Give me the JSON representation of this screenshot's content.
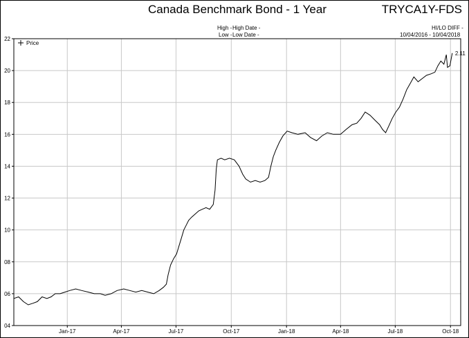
{
  "header": {
    "title": "Canada Benchmark Bond - 1 Year",
    "ticker": "TRYCA1Y-FDS",
    "high_label": "High -",
    "high_date_label": "High Date -",
    "low_label": "Low -",
    "low_date_label": "Low Date -",
    "hilo_label": "HI/LO DIFF -",
    "date_range": "10/04/2016 - 10/04/2018"
  },
  "chart_data": {
    "type": "line",
    "title": "Canada Benchmark Bond - 1 Year",
    "legend": {
      "entries": [
        "Price"
      ],
      "placement": "top-left"
    },
    "last_value_label": "2.11",
    "xlabel": "",
    "ylabel": "",
    "x_tick_labels": [
      "Jan-17",
      "Apr-17",
      "Jul-17",
      "Oct-17",
      "Jan-18",
      "Apr-18",
      "Jul-18",
      "Oct-18"
    ],
    "x_tick_dates": [
      "2017-01-01",
      "2017-04-01",
      "2017-07-01",
      "2017-10-01",
      "2018-01-01",
      "2018-04-01",
      "2018-07-01",
      "2018-10-01"
    ],
    "xlim": [
      "2016-10-04",
      "2018-10-18"
    ],
    "y_tick_labels": [
      "04",
      "06",
      "08",
      "10",
      "12",
      "14",
      "16",
      "18",
      "20",
      "22"
    ],
    "y_tick_values": [
      0.4,
      0.6,
      0.8,
      1.0,
      1.2,
      1.4,
      1.6,
      1.8,
      2.0,
      2.2
    ],
    "ylim": [
      0.4,
      2.2
    ],
    "grid": true,
    "series": [
      {
        "name": "Price",
        "points": [
          [
            "2016-10-04",
            0.57
          ],
          [
            "2016-10-12",
            0.58
          ],
          [
            "2016-10-20",
            0.55
          ],
          [
            "2016-10-28",
            0.53
          ],
          [
            "2016-11-05",
            0.54
          ],
          [
            "2016-11-12",
            0.55
          ],
          [
            "2016-11-20",
            0.58
          ],
          [
            "2016-11-28",
            0.57
          ],
          [
            "2016-12-05",
            0.58
          ],
          [
            "2016-12-12",
            0.6
          ],
          [
            "2016-12-20",
            0.6
          ],
          [
            "2016-12-28",
            0.61
          ],
          [
            "2017-01-05",
            0.62
          ],
          [
            "2017-01-15",
            0.63
          ],
          [
            "2017-01-25",
            0.62
          ],
          [
            "2017-02-05",
            0.61
          ],
          [
            "2017-02-15",
            0.6
          ],
          [
            "2017-02-25",
            0.6
          ],
          [
            "2017-03-05",
            0.59
          ],
          [
            "2017-03-15",
            0.6
          ],
          [
            "2017-03-25",
            0.62
          ],
          [
            "2017-04-05",
            0.63
          ],
          [
            "2017-04-15",
            0.62
          ],
          [
            "2017-04-25",
            0.61
          ],
          [
            "2017-05-05",
            0.62
          ],
          [
            "2017-05-15",
            0.61
          ],
          [
            "2017-05-25",
            0.6
          ],
          [
            "2017-06-03",
            0.62
          ],
          [
            "2017-06-10",
            0.64
          ],
          [
            "2017-06-15",
            0.66
          ],
          [
            "2017-06-18",
            0.72
          ],
          [
            "2017-06-22",
            0.78
          ],
          [
            "2017-06-27",
            0.82
          ],
          [
            "2017-07-02",
            0.85
          ],
          [
            "2017-07-06",
            0.9
          ],
          [
            "2017-07-10",
            0.95
          ],
          [
            "2017-07-14",
            1.0
          ],
          [
            "2017-07-18",
            1.03
          ],
          [
            "2017-07-22",
            1.06
          ],
          [
            "2017-07-27",
            1.08
          ],
          [
            "2017-08-02",
            1.1
          ],
          [
            "2017-08-08",
            1.12
          ],
          [
            "2017-08-14",
            1.13
          ],
          [
            "2017-08-20",
            1.14
          ],
          [
            "2017-08-26",
            1.13
          ],
          [
            "2017-09-01",
            1.16
          ],
          [
            "2017-09-04",
            1.25
          ],
          [
            "2017-09-06",
            1.38
          ],
          [
            "2017-09-08",
            1.44
          ],
          [
            "2017-09-14",
            1.45
          ],
          [
            "2017-09-20",
            1.44
          ],
          [
            "2017-09-28",
            1.45
          ],
          [
            "2017-10-06",
            1.44
          ],
          [
            "2017-10-14",
            1.4
          ],
          [
            "2017-10-20",
            1.35
          ],
          [
            "2017-10-25",
            1.32
          ],
          [
            "2017-11-02",
            1.3
          ],
          [
            "2017-11-10",
            1.31
          ],
          [
            "2017-11-18",
            1.3
          ],
          [
            "2017-11-26",
            1.31
          ],
          [
            "2017-12-02",
            1.33
          ],
          [
            "2017-12-06",
            1.4
          ],
          [
            "2017-12-10",
            1.46
          ],
          [
            "2017-12-14",
            1.5
          ],
          [
            "2017-12-20",
            1.55
          ],
          [
            "2017-12-26",
            1.59
          ],
          [
            "2018-01-02",
            1.62
          ],
          [
            "2018-01-10",
            1.61
          ],
          [
            "2018-01-20",
            1.6
          ],
          [
            "2018-02-01",
            1.61
          ],
          [
            "2018-02-10",
            1.58
          ],
          [
            "2018-02-20",
            1.56
          ],
          [
            "2018-03-01",
            1.59
          ],
          [
            "2018-03-10",
            1.61
          ],
          [
            "2018-03-20",
            1.6
          ],
          [
            "2018-04-01",
            1.6
          ],
          [
            "2018-04-10",
            1.63
          ],
          [
            "2018-04-20",
            1.66
          ],
          [
            "2018-04-28",
            1.67
          ],
          [
            "2018-05-05",
            1.7
          ],
          [
            "2018-05-12",
            1.74
          ],
          [
            "2018-05-20",
            1.72
          ],
          [
            "2018-05-28",
            1.69
          ],
          [
            "2018-06-05",
            1.66
          ],
          [
            "2018-06-10",
            1.63
          ],
          [
            "2018-06-15",
            1.61
          ],
          [
            "2018-06-20",
            1.65
          ],
          [
            "2018-06-26",
            1.7
          ],
          [
            "2018-07-02",
            1.74
          ],
          [
            "2018-07-08",
            1.77
          ],
          [
            "2018-07-14",
            1.82
          ],
          [
            "2018-07-20",
            1.88
          ],
          [
            "2018-07-26",
            1.92
          ],
          [
            "2018-08-01",
            1.96
          ],
          [
            "2018-08-08",
            1.93
          ],
          [
            "2018-08-15",
            1.95
          ],
          [
            "2018-08-22",
            1.97
          ],
          [
            "2018-08-30",
            1.98
          ],
          [
            "2018-09-05",
            1.99
          ],
          [
            "2018-09-10",
            2.03
          ],
          [
            "2018-09-15",
            2.06
          ],
          [
            "2018-09-20",
            2.04
          ],
          [
            "2018-09-24",
            2.1
          ],
          [
            "2018-09-26",
            2.02
          ],
          [
            "2018-09-30",
            2.03
          ],
          [
            "2018-10-04",
            2.11
          ]
        ]
      }
    ]
  },
  "colors": {
    "background": "#ffffff",
    "line": "#000000",
    "grid": "#c8c8c8",
    "frame": "#000000"
  }
}
